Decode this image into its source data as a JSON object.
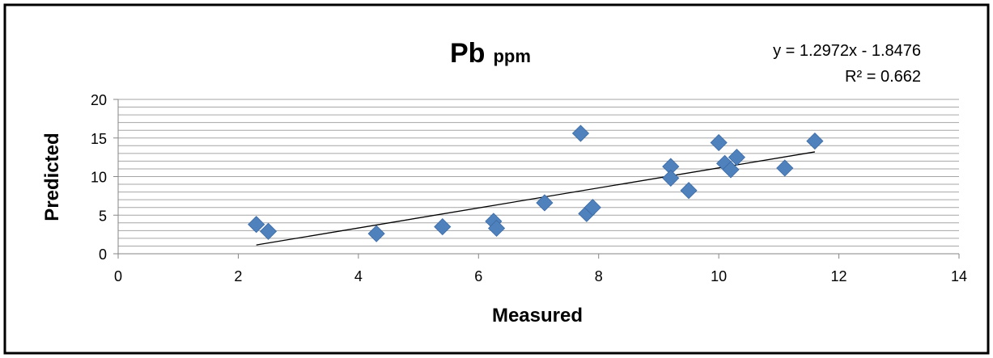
{
  "chart_data": {
    "type": "scatter",
    "title": "Pb",
    "title_suffix": "ppm",
    "xlabel": "Measured",
    "ylabel": "Predicted",
    "xlim": [
      0,
      14
    ],
    "ylim": [
      0,
      20
    ],
    "x_ticks": [
      "0",
      "2",
      "4",
      "6",
      "8",
      "10",
      "12",
      "14"
    ],
    "y_ticks": [
      "0",
      "5",
      "10",
      "15",
      "20"
    ],
    "grid": "horizontal",
    "marker": "diamond",
    "marker_color": "#4F81BD",
    "series": [
      {
        "points": [
          {
            "x": 2.3,
            "y": 3.8
          },
          {
            "x": 2.5,
            "y": 2.9
          },
          {
            "x": 4.3,
            "y": 2.6
          },
          {
            "x": 5.4,
            "y": 3.5
          },
          {
            "x": 6.25,
            "y": 4.2
          },
          {
            "x": 6.3,
            "y": 3.3
          },
          {
            "x": 7.1,
            "y": 6.6
          },
          {
            "x": 7.7,
            "y": 15.6
          },
          {
            "x": 7.8,
            "y": 5.2
          },
          {
            "x": 7.9,
            "y": 6.0
          },
          {
            "x": 9.2,
            "y": 11.3
          },
          {
            "x": 9.2,
            "y": 9.8
          },
          {
            "x": 9.5,
            "y": 8.2
          },
          {
            "x": 10.0,
            "y": 14.4
          },
          {
            "x": 10.1,
            "y": 11.7
          },
          {
            "x": 10.2,
            "y": 10.9
          },
          {
            "x": 10.3,
            "y": 12.5
          },
          {
            "x": 11.1,
            "y": 11.1
          },
          {
            "x": 11.6,
            "y": 14.6
          }
        ]
      }
    ],
    "trendline": {
      "slope": 1.2972,
      "intercept": -1.8476,
      "x_range": [
        2.3,
        11.6
      ],
      "equation": "y = 1.2972x - 1.8476",
      "r_squared": "R² = 0.662"
    }
  }
}
